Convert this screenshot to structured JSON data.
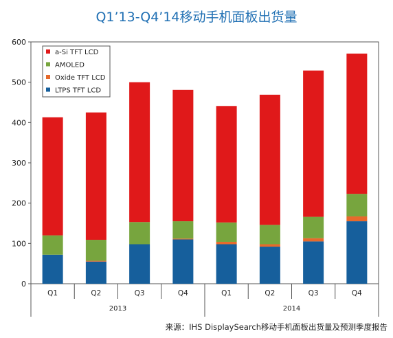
{
  "title": "Q1’13-Q4’14移动手机面板出货量",
  "source": "来源：IHS DisplaySearch移动手机面板出货量及预测季度报告",
  "chart_data": {
    "type": "bar",
    "stacked": true,
    "quarters": [
      "Q1",
      "Q2",
      "Q3",
      "Q4",
      "Q1",
      "Q2",
      "Q3",
      "Q4"
    ],
    "years": [
      {
        "label": "2013",
        "span": 4
      },
      {
        "label": "2014",
        "span": 4
      }
    ],
    "ylim": [
      0,
      600
    ],
    "yticks": [
      "0",
      "100",
      "200",
      "300",
      "400",
      "500",
      "600"
    ],
    "grid": false,
    "legend_position": "top-left",
    "series": [
      {
        "name": "LTPS TFT LCD",
        "color": "#165f9c",
        "values": [
          72,
          55,
          98,
          110,
          98,
          92,
          105,
          155
        ]
      },
      {
        "name": "Oxide TFT LCD",
        "color": "#e66a2c",
        "values": [
          0,
          2,
          0,
          2,
          6,
          6,
          8,
          12
        ]
      },
      {
        "name": "AMOLED",
        "color": "#77a53e",
        "values": [
          48,
          52,
          55,
          43,
          48,
          48,
          53,
          56
        ]
      },
      {
        "name": "a-Si TFT LCD",
        "color": "#e0191a",
        "values": [
          293,
          316,
          347,
          326,
          289,
          323,
          363,
          348
        ]
      }
    ],
    "legend_order": [
      "a-Si TFT LCD",
      "AMOLED",
      "Oxide TFT LCD",
      "LTPS TFT LCD"
    ]
  }
}
